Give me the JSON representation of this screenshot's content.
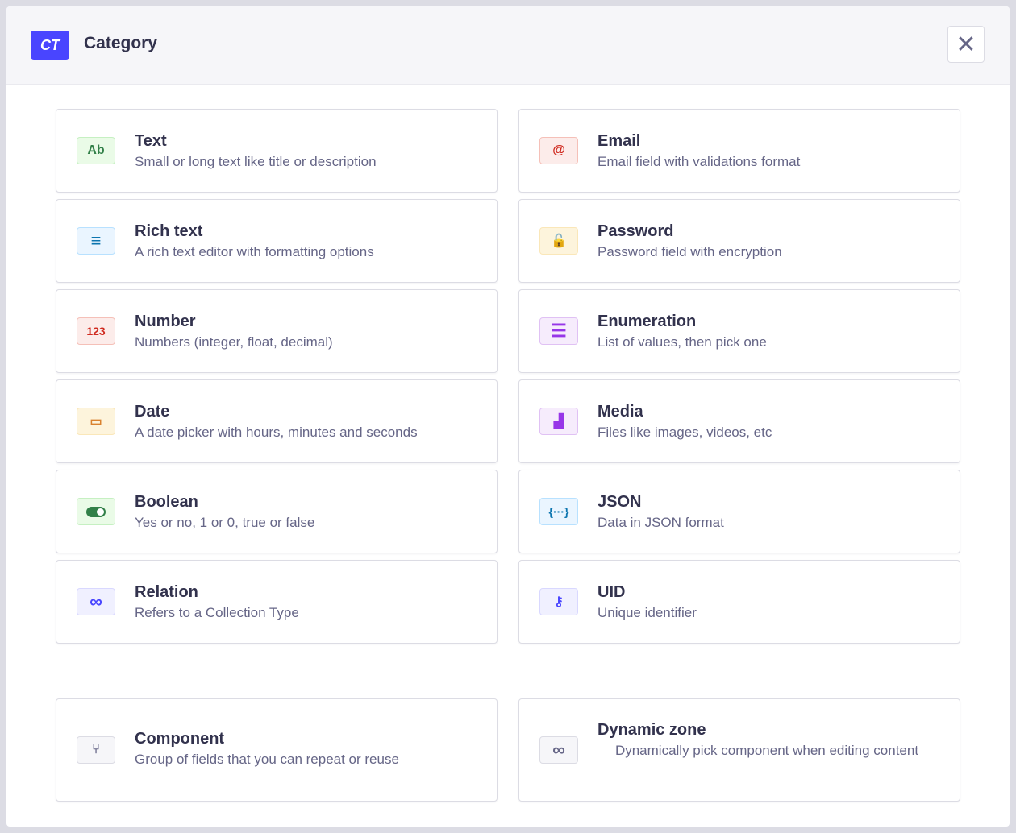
{
  "header": {
    "badge": "CT",
    "title": "Category",
    "close_icon": "close-icon"
  },
  "fields": [
    {
      "name": "Text",
      "description": "Small or long text like title or description",
      "icon": "Ab",
      "icon_name": "text-icon",
      "color": "#328048",
      "bg": "#eafbe7",
      "border": "#c6f0c2"
    },
    {
      "name": "Email",
      "description": "Email field with validations format",
      "icon": "@",
      "icon_name": "email-icon",
      "color": "#d02b20",
      "bg": "#fcecea",
      "border": "#f5c0b8"
    },
    {
      "name": "Rich text",
      "description": "A rich text editor with formatting options",
      "icon": "≡",
      "icon_name": "rich-text-icon",
      "color": "#0c75af",
      "bg": "#eaf5ff",
      "border": "#b8e1ff"
    },
    {
      "name": "Password",
      "description": "Password field with encryption",
      "icon": "🔓",
      "icon_name": "lock-icon",
      "color": "#d9822f",
      "bg": "#fdf4dc",
      "border": "#fae7b9"
    },
    {
      "name": "Number",
      "description": "Numbers (integer, float, decimal)",
      "icon": "123",
      "icon_name": "number-icon",
      "color": "#d02b20",
      "bg": "#fcecea",
      "border": "#f5c0b8"
    },
    {
      "name": "Enumeration",
      "description": "List of values, then pick one",
      "icon": "☰",
      "icon_name": "list-icon",
      "color": "#9736e8",
      "bg": "#f6ecfc",
      "border": "#e0c1f4"
    },
    {
      "name": "Date",
      "description": "A date picker with hours, minutes and seconds",
      "icon": "▭",
      "icon_name": "calendar-icon",
      "color": "#d9822f",
      "bg": "#fdf4dc",
      "border": "#fae7b9"
    },
    {
      "name": "Media",
      "description": "Files like images, videos, etc",
      "icon": "▟",
      "icon_name": "image-icon",
      "color": "#9736e8",
      "bg": "#f6ecfc",
      "border": "#e0c1f4"
    },
    {
      "name": "Boolean",
      "description": "Yes or no, 1 or 0, true or false",
      "icon": "toggle",
      "icon_name": "toggle-icon",
      "color": "#328048",
      "bg": "#eafbe7",
      "border": "#c6f0c2"
    },
    {
      "name": "JSON",
      "description": "Data in JSON format",
      "icon": "{···}",
      "icon_name": "json-icon",
      "color": "#0c75af",
      "bg": "#eaf5ff",
      "border": "#b8e1ff"
    },
    {
      "name": "Relation",
      "description": "Refers to a Collection Type",
      "icon": "∞",
      "icon_name": "link-icon",
      "color": "#4945ff",
      "bg": "#f0f0ff",
      "border": "#d9d8ff"
    },
    {
      "name": "UID",
      "description": "Unique identifier",
      "icon": "⚷",
      "icon_name": "key-icon",
      "color": "#4945ff",
      "bg": "#f0f0ff",
      "border": "#d9d8ff"
    }
  ],
  "components": [
    {
      "name": "Component",
      "description": "Group of fields that you can repeat or reuse",
      "icon": "⑂",
      "icon_name": "component-icon",
      "color": "#666687",
      "bg": "#f6f6f9",
      "border": "#dcdce4"
    },
    {
      "name": "Dynamic zone",
      "description": "Dynamically pick component when editing content",
      "icon": "∞",
      "icon_name": "infinity-icon",
      "color": "#666687",
      "bg": "#f6f6f9",
      "border": "#dcdce4"
    }
  ]
}
